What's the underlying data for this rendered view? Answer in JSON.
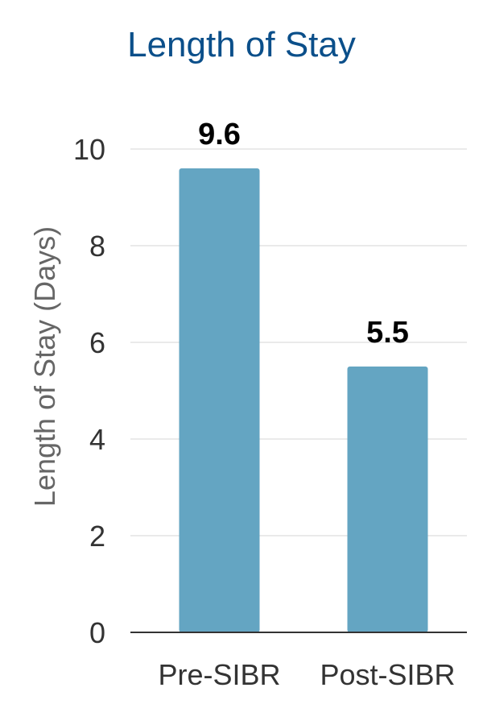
{
  "chart_data": {
    "type": "bar",
    "title": "Length of Stay",
    "xlabel": "",
    "ylabel": "Length of Stay (Days)",
    "categories": [
      "Pre-SIBR",
      "Post-SIBR"
    ],
    "values": [
      9.6,
      5.5
    ],
    "data_labels": [
      "9.6",
      "5.5"
    ],
    "ylim": [
      0,
      10
    ],
    "yticks": [
      0,
      2,
      4,
      6,
      8,
      10
    ],
    "ytick_labels": [
      "0",
      "2",
      "4",
      "6",
      "8",
      "10"
    ],
    "grid": true,
    "legend": "none"
  },
  "colors": {
    "title": "#0b4f8a",
    "bar": "#64a5c2",
    "grid": "#e3e3e3",
    "axis": "#333333",
    "tick_text": "#333333",
    "ylabel_text": "#666666",
    "data_label": "#000000"
  }
}
